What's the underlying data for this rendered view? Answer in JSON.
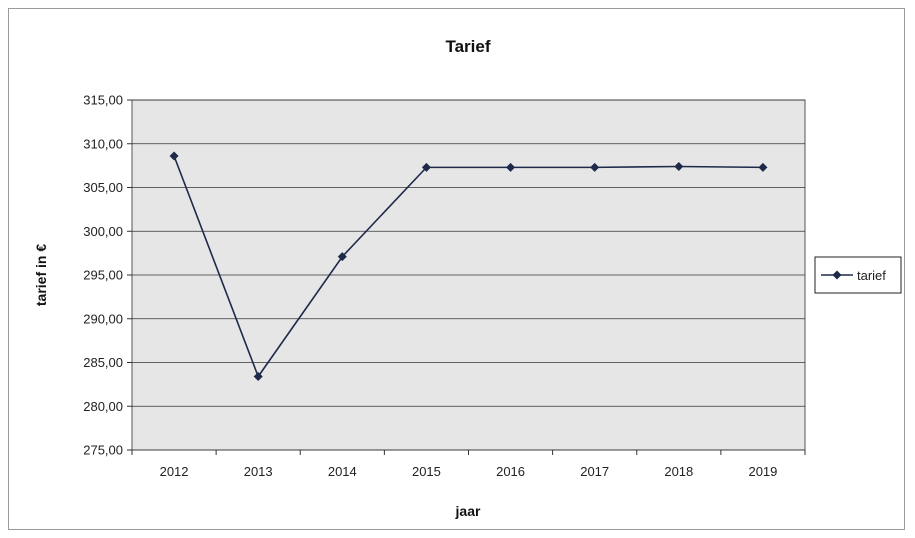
{
  "chart_data": {
    "type": "line",
    "title": "Tarief",
    "xlabel": "jaar",
    "ylabel": "tarief in €",
    "categories": [
      "2012",
      "2013",
      "2014",
      "2015",
      "2016",
      "2017",
      "2018",
      "2019"
    ],
    "series": [
      {
        "name": "tarief",
        "values": [
          308.6,
          283.4,
          297.1,
          307.3,
          307.3,
          307.3,
          307.4,
          307.3
        ]
      }
    ],
    "ylim": [
      275,
      315
    ],
    "yticks": [
      "275,00",
      "280,00",
      "285,00",
      "290,00",
      "295,00",
      "300,00",
      "305,00",
      "310,00",
      "315,00"
    ],
    "grid": true,
    "legend_position": "right",
    "colors": {
      "series": "#1f2a4a",
      "plot_bg": "#e6e6e6",
      "grid": "#333333"
    }
  }
}
